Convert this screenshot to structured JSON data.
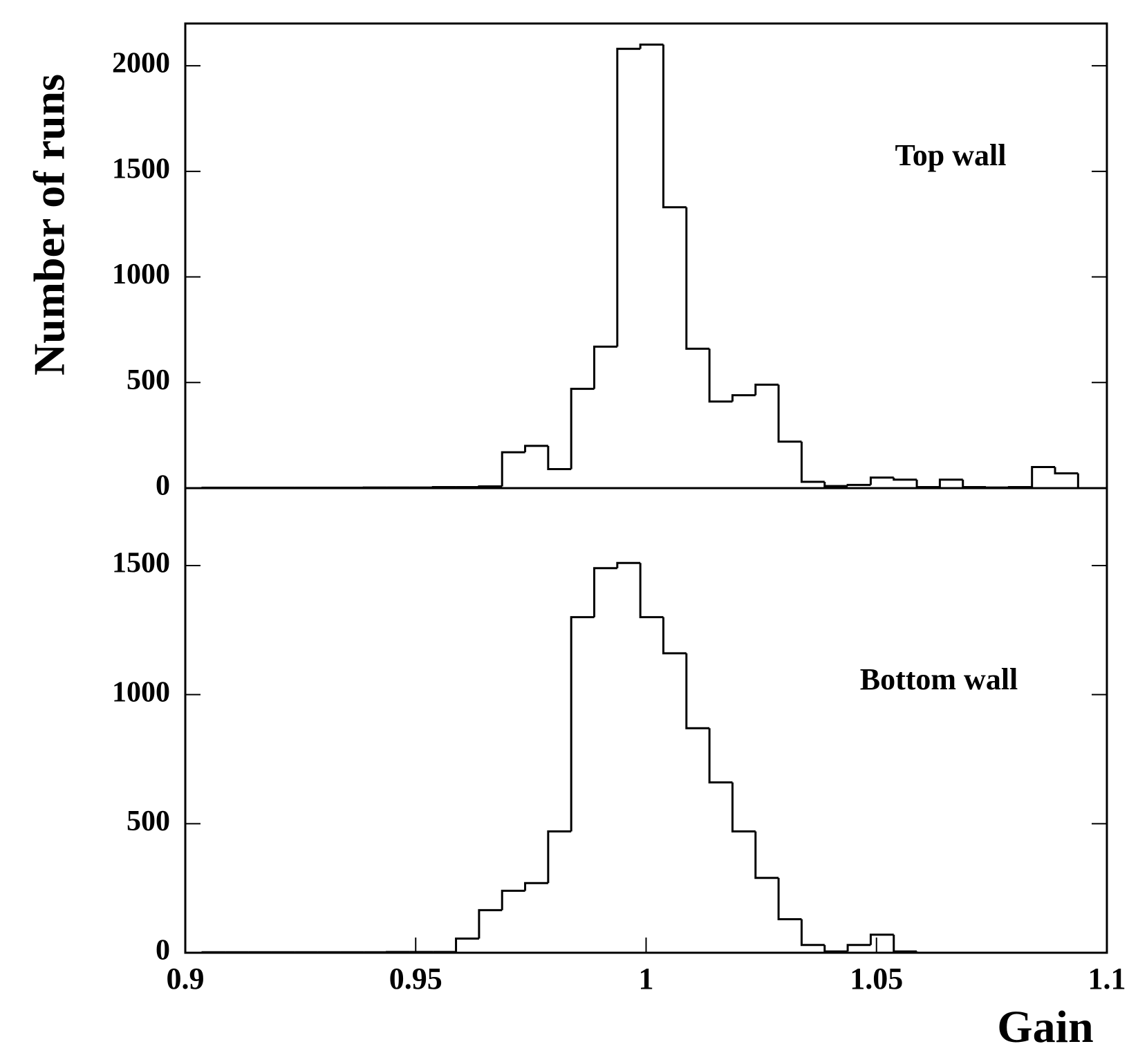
{
  "chart_data": [
    {
      "type": "histogram",
      "ylabel": "Number of runs",
      "annotation": "Top wall",
      "bins": [
        0.90375,
        0.90875,
        0.91375,
        0.91875,
        0.92375,
        0.92875,
        0.93375,
        0.93875,
        0.94375,
        0.94875,
        0.95375,
        0.95875,
        0.96375,
        0.96875,
        0.97375,
        0.97875,
        0.98375,
        0.98875,
        0.99375,
        0.99875,
        1.00375,
        1.00875,
        1.01375,
        1.01875,
        1.02375,
        1.02875,
        1.03375,
        1.03875,
        1.04375,
        1.04875,
        1.05375,
        1.05875,
        1.06375,
        1.06875,
        1.07375,
        1.07875,
        1.08375,
        1.08875,
        1.09375,
        1.09875
      ],
      "values": [
        2,
        2,
        2,
        2,
        2,
        2,
        2,
        3,
        3,
        3,
        5,
        5,
        8,
        170,
        200,
        90,
        470,
        670,
        2080,
        2100,
        1330,
        660,
        410,
        440,
        490,
        220,
        30,
        10,
        15,
        50,
        40,
        5,
        40,
        5,
        3,
        5,
        100,
        70,
        0
      ],
      "color": "#000000",
      "xlim": [
        0.9,
        1.1
      ],
      "ylim": [
        0,
        2200
      ],
      "yticks": [
        0,
        500,
        1000,
        1500,
        2000
      ]
    },
    {
      "type": "histogram",
      "xlabel": "Gain",
      "annotation": "Bottom wall",
      "bins": [
        0.90375,
        0.90875,
        0.91375,
        0.91875,
        0.92375,
        0.92875,
        0.93375,
        0.93875,
        0.94375,
        0.94875,
        0.95375,
        0.95875,
        0.96375,
        0.96875,
        0.97375,
        0.97875,
        0.98375,
        0.98875,
        0.99375,
        0.99875,
        1.00375,
        1.00875,
        1.01375,
        1.01875,
        1.02375,
        1.02875,
        1.03375,
        1.03875,
        1.04375,
        1.04875,
        1.05375,
        1.05875,
        1.06375,
        1.06875,
        1.07375,
        1.07875,
        1.08375,
        1.08875,
        1.09375,
        1.09875
      ],
      "values": [
        2,
        2,
        2,
        2,
        2,
        2,
        2,
        2,
        3,
        3,
        3,
        55,
        165,
        240,
        270,
        470,
        1300,
        1490,
        1510,
        1300,
        1160,
        870,
        660,
        470,
        290,
        130,
        30,
        5,
        30,
        70,
        5,
        0,
        0,
        0,
        0,
        0,
        0,
        0,
        0
      ],
      "color": "#000000",
      "xlim": [
        0.9,
        1.1
      ],
      "ylim": [
        0,
        1800
      ],
      "yticks": [
        0,
        500,
        1000,
        1500
      ],
      "xticks": [
        0.9,
        0.95,
        1,
        1.05,
        1.1
      ]
    }
  ]
}
